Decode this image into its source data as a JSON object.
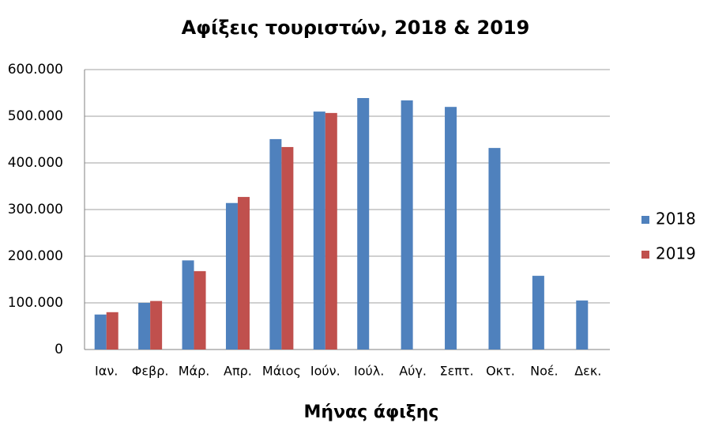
{
  "chart_data": {
    "type": "bar",
    "title": "Αφίξεις τουριστών, 2018 & 2019",
    "x_label": "Μήνας άφιξης",
    "categories": [
      "Ιαν.",
      "Φεβρ.",
      "Μάρ.",
      "Απρ.",
      "Μάιος",
      "Ιούν.",
      "Ιούλ.",
      "Αύγ.",
      "Σεπτ.",
      "Οκτ.",
      "Νοέ.",
      "Δεκ."
    ],
    "series": [
      {
        "name": "2018",
        "color": "#4f81bd",
        "values": [
          75000,
          100000,
          191000,
          314000,
          451000,
          510000,
          539000,
          534000,
          520000,
          432000,
          158000,
          105000
        ]
      },
      {
        "name": "2019",
        "color": "#c0504d",
        "values": [
          80000,
          104000,
          168000,
          327000,
          434000,
          507000,
          null,
          null,
          null,
          null,
          null,
          null
        ]
      }
    ],
    "ylim": [
      0,
      600000
    ],
    "yticks": [
      0,
      {
        "value": 100000,
        "label": "100.000"
      },
      {
        "value": 200000,
        "label": "200.000"
      },
      {
        "value": 300000,
        "label": "300.000"
      },
      {
        "value": 400000,
        "label": "400.000"
      },
      {
        "value": 500000,
        "label": "500.000"
      },
      {
        "value": 600000,
        "label": "600.000"
      }
    ],
    "grid": true,
    "legend": "right"
  }
}
